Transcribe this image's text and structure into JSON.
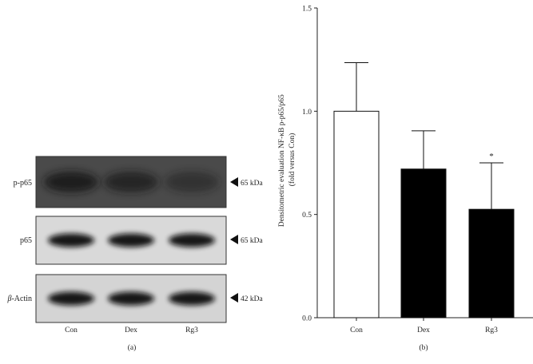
{
  "panel_a": {
    "caption": "(a)",
    "blots": [
      {
        "label": "p-p65",
        "marker": "65 kDa",
        "intensity": [
          0.85,
          0.7,
          0.45
        ],
        "bg": "#4a4a4a"
      },
      {
        "label": "p65",
        "marker": "65 kDa",
        "intensity": [
          1.0,
          1.0,
          1.0
        ],
        "bg": "#d9d9d9"
      },
      {
        "label_prefix": "β",
        "label": "-Actin",
        "marker": "42 kDa",
        "intensity": [
          1.0,
          1.0,
          1.0
        ],
        "bg": "#d4d4d4"
      }
    ],
    "lanes": [
      "Con",
      "Dex",
      "Rg3"
    ]
  },
  "chart_data": {
    "type": "bar",
    "categories": [
      "Con",
      "Dex",
      "Rg3"
    ],
    "values": [
      1.0,
      0.72,
      0.525
    ],
    "errors": [
      0.235,
      0.185,
      0.225
    ],
    "bar_colors": [
      "#ffffff",
      "#000000",
      "#000000"
    ],
    "significance": [
      "",
      "",
      "*"
    ],
    "ylabel_line1": "Densitometric evaluation NF-κB p-p65/p65",
    "ylabel_line2": "(fold versus Con)",
    "ylim": [
      0,
      1.5
    ],
    "yticks": [
      "0.0",
      "0.5",
      "1.0",
      "1.5"
    ],
    "caption": "(b)",
    "grid": false
  }
}
